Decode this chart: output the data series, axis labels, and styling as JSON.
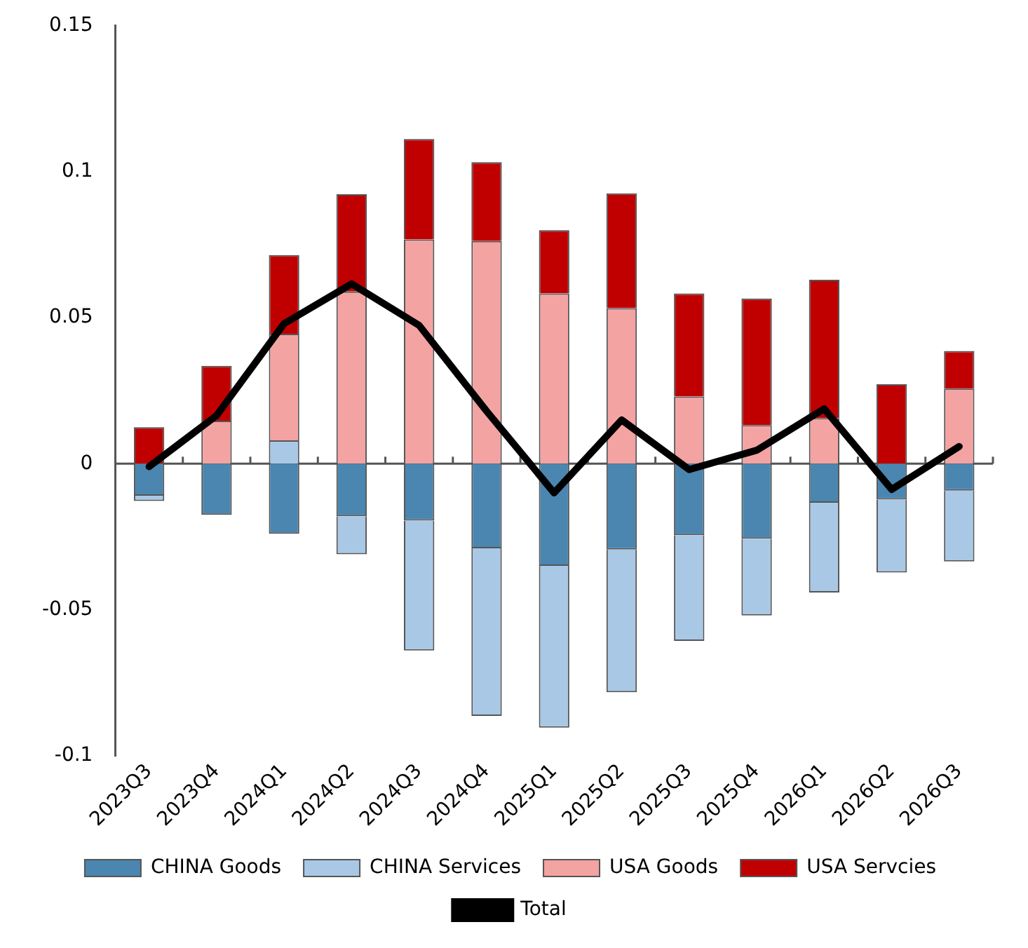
{
  "chart_data": {
    "type": "bar",
    "stacked": true,
    "categories": [
      "2023Q3",
      "2023Q4",
      "2024Q1",
      "2024Q2",
      "2024Q3",
      "2024Q4",
      "2025Q1",
      "2025Q2",
      "2025Q3",
      "2025Q4",
      "2026Q1",
      "2026Q2",
      "2026Q3"
    ],
    "series": [
      {
        "name": "CHINA Goods",
        "color": "#4a86b0",
        "values": [
          -0.011,
          -0.0175,
          -0.024,
          -0.018,
          -0.0195,
          -0.029,
          -0.035,
          -0.0294,
          -0.0245,
          -0.0257,
          -0.0134,
          -0.0123,
          -0.0092
        ]
      },
      {
        "name": "CHINA Services",
        "color": "#a9c8e6",
        "values": [
          -0.0018,
          0,
          0.008,
          -0.013,
          -0.0445,
          -0.0574,
          -0.0554,
          -0.0489,
          -0.0362,
          -0.0263,
          -0.0307,
          -0.025,
          -0.0243
        ]
      },
      {
        "name": "USA Goods",
        "color": "#f4a3a3",
        "values": [
          0,
          0.0147,
          0.0365,
          0.059,
          0.0768,
          0.0763,
          0.0583,
          0.0533,
          0.023,
          0.0132,
          0.0156,
          0,
          0.0257
        ]
      },
      {
        "name": "USA Servcies",
        "color": "#c00000",
        "values": [
          0.0125,
          0.0188,
          0.027,
          0.0333,
          0.0344,
          0.027,
          0.0217,
          0.0393,
          0.0353,
          0.0434,
          0.0474,
          0.0272,
          0.0129
        ]
      },
      {
        "name": "Total",
        "type": "line",
        "color": "#000000",
        "values": [
          -0.001,
          0.0165,
          0.048,
          0.0616,
          0.0474,
          0.018,
          -0.01,
          0.015,
          -0.002,
          0.0046,
          0.0188,
          -0.0088,
          0.0059
        ]
      }
    ],
    "ylim": [
      -0.1,
      0.15
    ],
    "yticks": [
      -0.1,
      -0.05,
      0,
      0.05,
      0.1,
      0.15
    ],
    "legend": "bottom",
    "marker": "none",
    "line_style": "solid"
  }
}
